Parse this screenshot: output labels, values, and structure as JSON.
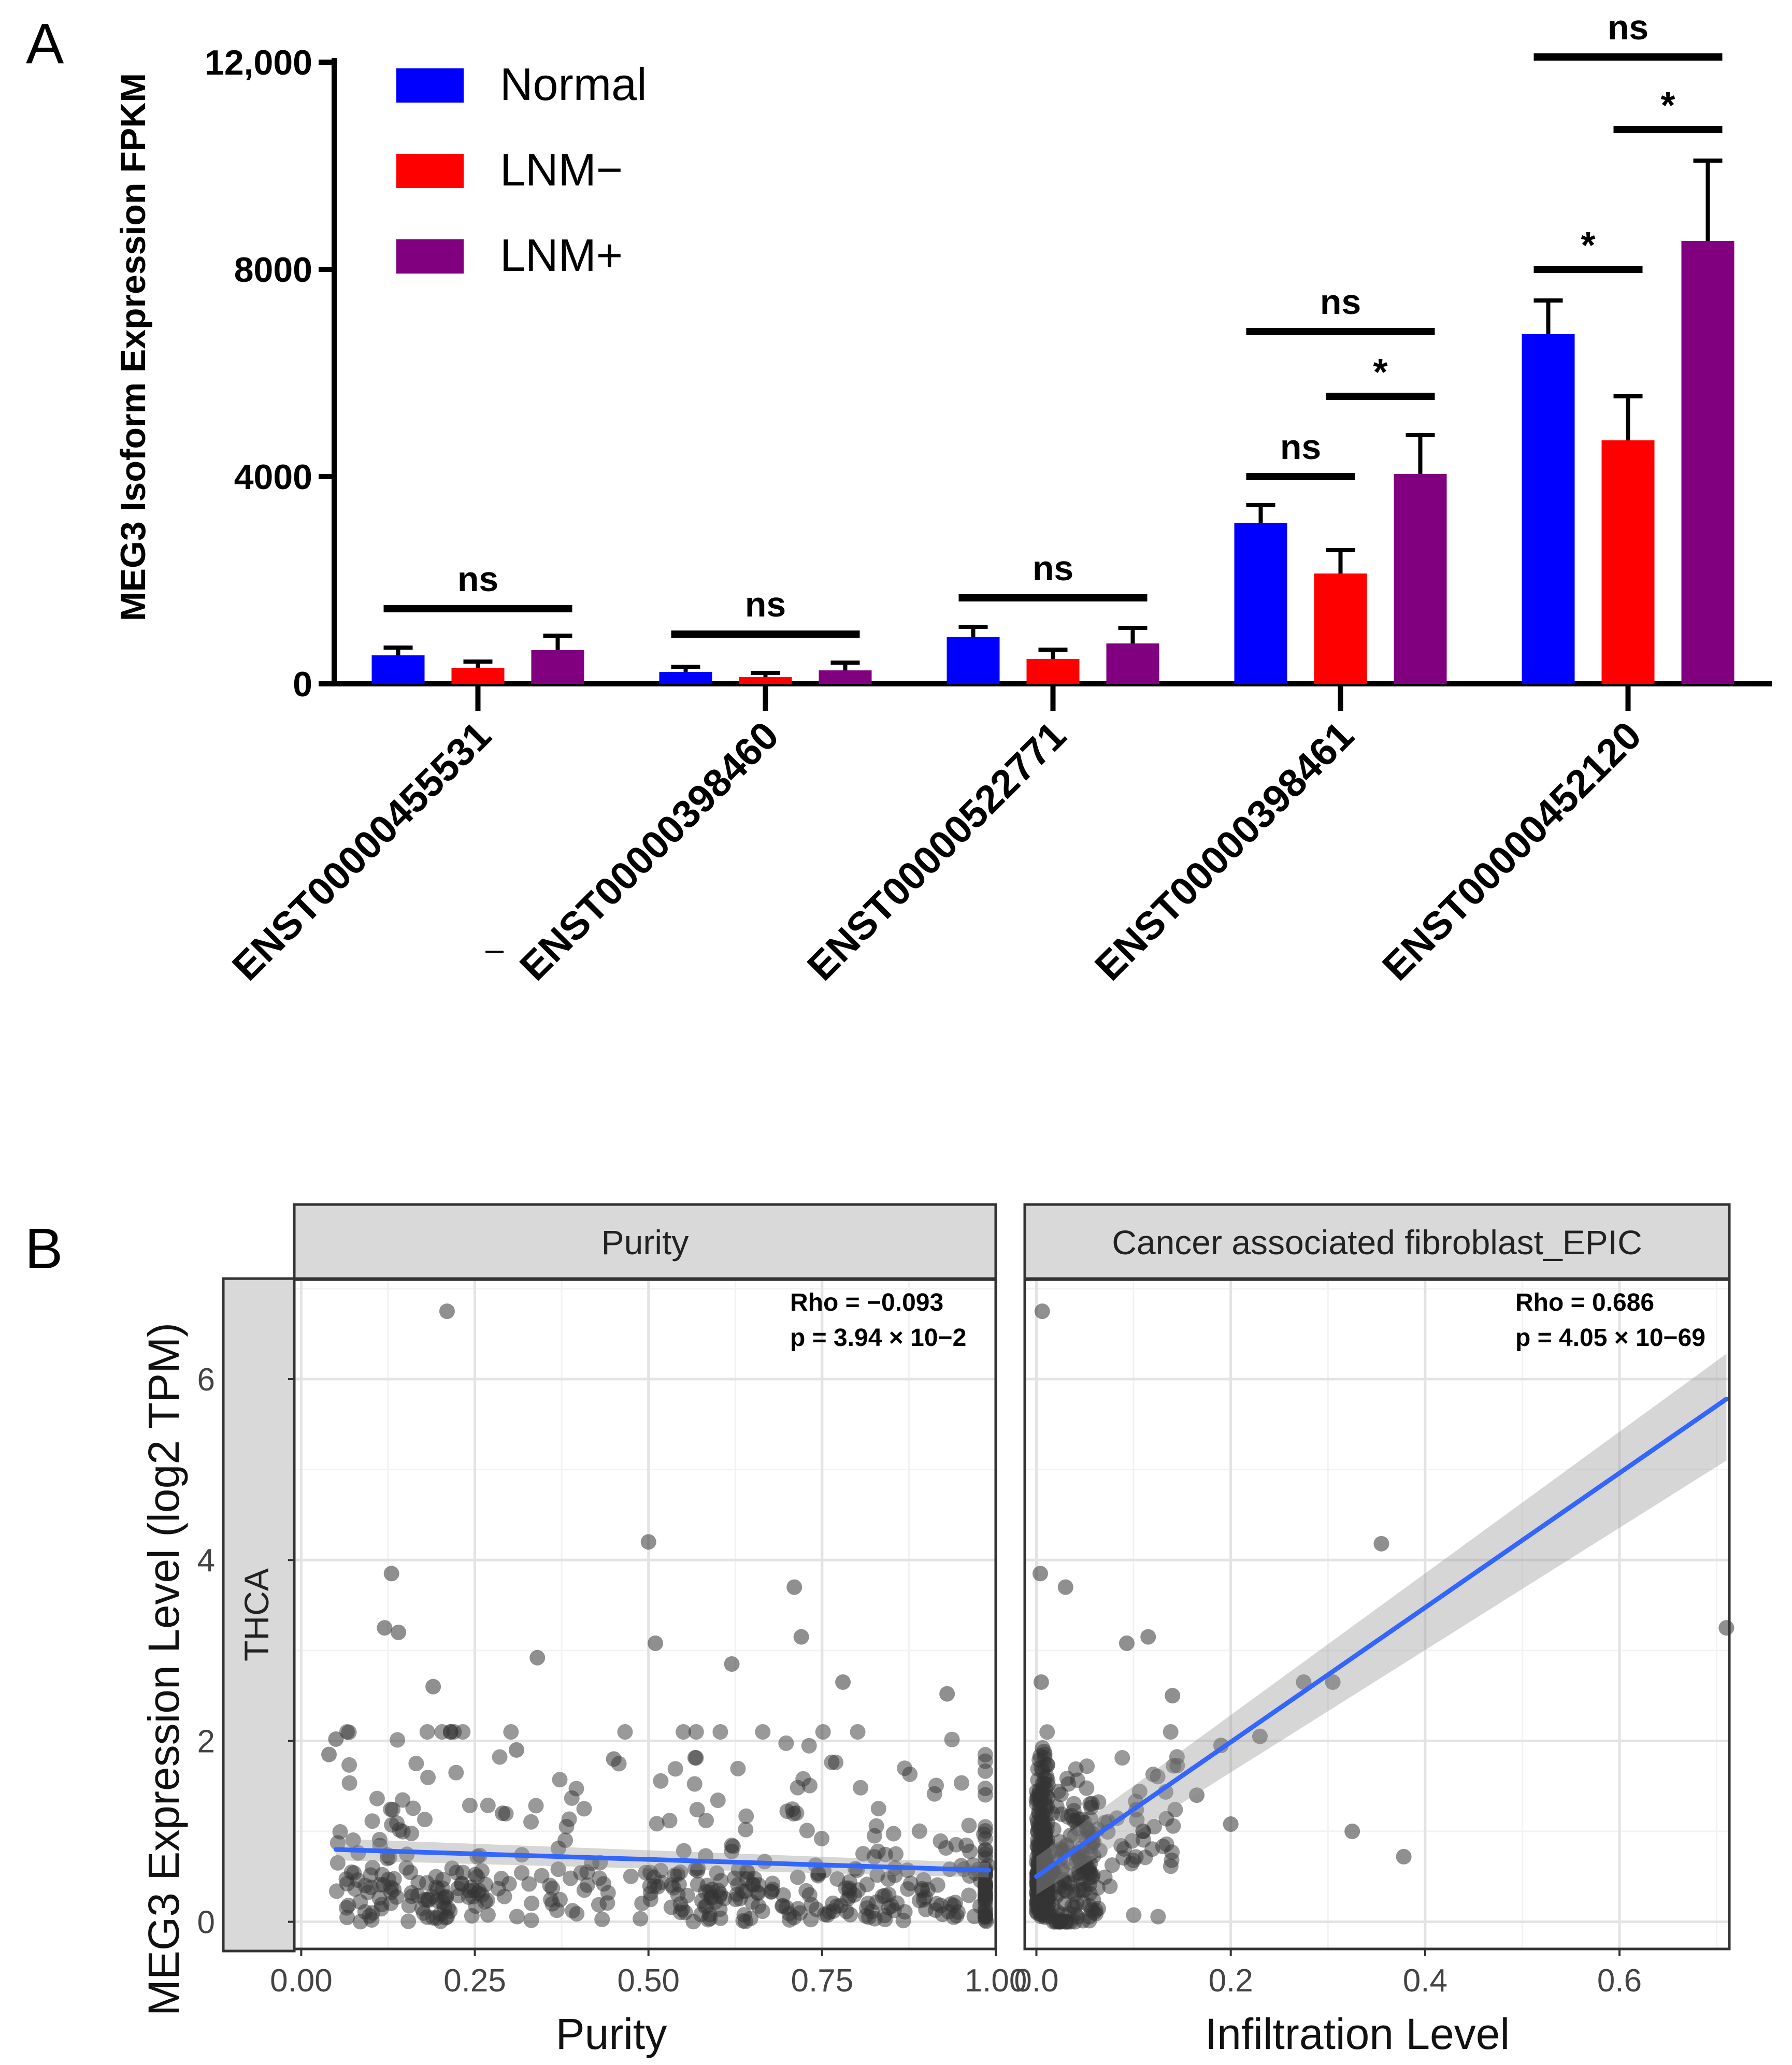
{
  "colors": {
    "normal": "#0000ff",
    "lnm_neg": "#ff0000",
    "lnm_pos": "#800080",
    "fit_line": "#3366ff",
    "ribbon": "#bdbdbd",
    "strip_bg": "#d9d9d9",
    "grid": "#ebebeb",
    "point": "#333333"
  },
  "chart_data": [
    {
      "panel_label": "A",
      "type": "bar",
      "ylabel": "MEG3 Isoform Expression FPKM",
      "ylim": [
        0,
        12000
      ],
      "y_ticks": [
        0,
        4000,
        8000,
        12000
      ],
      "y_tick_labels": [
        "0",
        "4000",
        "8000",
        "12,000"
      ],
      "legend_position": "top-left",
      "categories": [
        "ENST00000455531",
        "ENST00000398460",
        "ENST00000522771",
        "ENST00000398461",
        "ENST00000452120"
      ],
      "series": [
        {
          "name": "Normal",
          "color": "#0000ff",
          "values": [
            550,
            230,
            900,
            3100,
            6750
          ],
          "errors": [
            150,
            100,
            200,
            350,
            650
          ]
        },
        {
          "name": "LNM−",
          "color": "#ff0000",
          "values": [
            310,
            130,
            480,
            2130,
            4700
          ],
          "errors": [
            120,
            80,
            180,
            450,
            850
          ]
        },
        {
          "name": "LNM+",
          "color": "#800080",
          "values": [
            650,
            260,
            780,
            4050,
            8550
          ],
          "errors": [
            280,
            150,
            300,
            750,
            1550
          ]
        }
      ],
      "significance": [
        {
          "category_index": 0,
          "from": 0,
          "to": 2,
          "y": 1450,
          "label": "ns"
        },
        {
          "category_index": 1,
          "from": 0,
          "to": 2,
          "y": 960,
          "label": "ns"
        },
        {
          "category_index": 2,
          "from": 0,
          "to": 2,
          "y": 1660,
          "label": "ns"
        },
        {
          "category_index": 3,
          "from": 0,
          "to": 1,
          "y": 4000,
          "label": "ns"
        },
        {
          "category_index": 3,
          "from": 0,
          "to": 2,
          "y": 6800,
          "label": "ns"
        },
        {
          "category_index": 3,
          "from": 1,
          "to": 2,
          "y": 5550,
          "label": "*"
        },
        {
          "category_index": 4,
          "from": 0,
          "to": 1,
          "y": 8000,
          "label": "*"
        },
        {
          "category_index": 4,
          "from": 1,
          "to": 2,
          "y": 10700,
          "label": "*"
        },
        {
          "category_index": 4,
          "from": 0,
          "to": 2,
          "y": 12100,
          "label": "ns"
        }
      ]
    },
    {
      "panel_label": "B",
      "type": "scatter",
      "ylabel": "MEG3 Expression Level (log2 TPM)",
      "row_strip": "THCA",
      "ylim": [
        -0.3,
        7.1
      ],
      "y_ticks": [
        0,
        2,
        4,
        6
      ],
      "y_tick_labels": [
        "0",
        "2",
        "4",
        "6"
      ],
      "facets": [
        {
          "strip": "Purity",
          "xlabel": "Purity",
          "xlim": [
            -0.01,
            1.0
          ],
          "x_ticks": [
            0,
            0.25,
            0.5,
            0.75,
            1.0
          ],
          "x_tick_labels": [
            "0.00",
            "0.25",
            "0.50",
            "0.75",
            "1.00"
          ],
          "rho": "Rho = −0.093",
          "p": "p = 3.94 × 10−2",
          "fit": {
            "x": [
              0.05,
              0.99
            ],
            "y": [
              0.8,
              0.57
            ]
          },
          "ribbon": {
            "x": [
              0.05,
              0.99
            ],
            "upper": [
              0.92,
              0.65
            ],
            "lower": [
              0.68,
              0.49
            ]
          },
          "highlighted_points": [
            {
              "x": 0.21,
              "y": 6.75
            },
            {
              "x": 0.5,
              "y": 4.2
            },
            {
              "x": 0.13,
              "y": 3.85
            },
            {
              "x": 0.71,
              "y": 3.7
            },
            {
              "x": 0.12,
              "y": 3.25
            },
            {
              "x": 0.14,
              "y": 3.2
            },
            {
              "x": 0.51,
              "y": 3.08
            },
            {
              "x": 0.72,
              "y": 3.15
            },
            {
              "x": 0.34,
              "y": 2.92
            },
            {
              "x": 0.62,
              "y": 2.85
            },
            {
              "x": 0.19,
              "y": 2.6
            },
            {
              "x": 0.78,
              "y": 2.65
            },
            {
              "x": 0.93,
              "y": 2.52
            },
            {
              "x": 0.31,
              "y": 1.9
            },
            {
              "x": 0.05,
              "y": 2.02
            },
            {
              "x": 0.04,
              "y": 1.85
            },
            {
              "x": 0.29,
              "y": 1.2
            },
            {
              "x": 0.45,
              "y": 1.8
            }
          ]
        },
        {
          "strip": "Cancer associated fibroblast_EPIC",
          "xlabel": "Infiltration Level",
          "xlim": [
            -0.012,
            0.713
          ],
          "x_ticks": [
            0,
            0.2,
            0.4,
            0.6
          ],
          "x_tick_labels": [
            "0.0",
            "0.2",
            "0.4",
            "0.6"
          ],
          "rho": "Rho = 0.686",
          "p": "p = 4.05 × 10−69",
          "fit": {
            "x": [
              0.0,
              0.71
            ],
            "y": [
              0.5,
              5.78
            ]
          },
          "ribbon": {
            "x": [
              0.0,
              0.71
            ],
            "upper": [
              0.72,
              6.28
            ],
            "lower": [
              0.3,
              5.1
            ]
          },
          "highlighted_points": [
            {
              "x": 0.006,
              "y": 6.75
            },
            {
              "x": 0.355,
              "y": 4.18
            },
            {
              "x": 0.004,
              "y": 3.85
            },
            {
              "x": 0.03,
              "y": 3.7
            },
            {
              "x": 0.71,
              "y": 3.25
            },
            {
              "x": 0.093,
              "y": 3.08
            },
            {
              "x": 0.115,
              "y": 3.15
            },
            {
              "x": 0.275,
              "y": 2.65
            },
            {
              "x": 0.305,
              "y": 2.65
            },
            {
              "x": 0.14,
              "y": 2.5
            },
            {
              "x": 0.19,
              "y": 1.95
            },
            {
              "x": 0.23,
              "y": 2.05
            },
            {
              "x": 0.165,
              "y": 1.4
            },
            {
              "x": 0.2,
              "y": 1.08
            },
            {
              "x": 0.325,
              "y": 1.0
            },
            {
              "x": 0.378,
              "y": 0.72
            },
            {
              "x": 0.11,
              "y": 1.0
            },
            {
              "x": 0.005,
              "y": 2.65
            }
          ]
        }
      ]
    }
  ]
}
